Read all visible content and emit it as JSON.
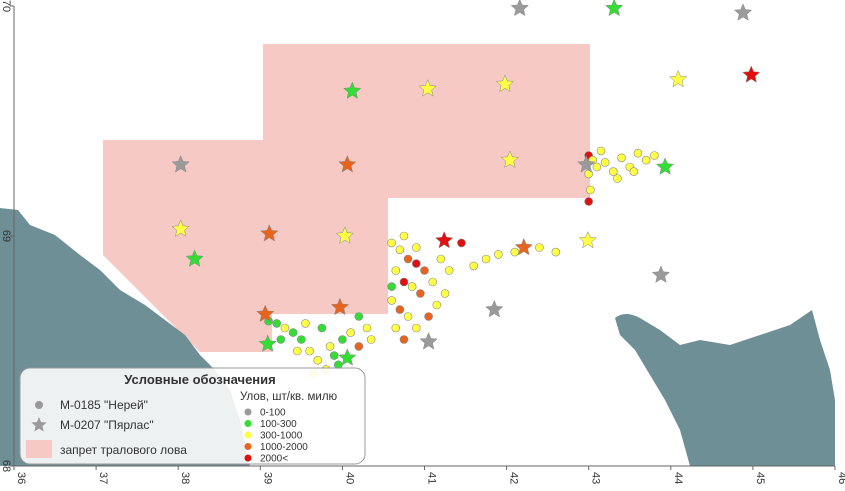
{
  "map": {
    "xlim": [
      36,
      46
    ],
    "ylim": [
      68,
      70
    ],
    "xticks": [
      36,
      37,
      38,
      39,
      40,
      41,
      42,
      43,
      44,
      45,
      46
    ],
    "yticks": [
      68,
      69,
      70
    ]
  },
  "legend": {
    "title": "Условные обозначения",
    "vessels": [
      "М-0185 \"Нерей\"",
      "М-0207 \"Пярлас\""
    ],
    "zone": "запрет тралового лова",
    "catch_title": "Улов, шт/кв. милю",
    "classes": [
      {
        "label": "0-100",
        "color": "#9a9a9a"
      },
      {
        "label": "100-300",
        "color": "#33dd33"
      },
      {
        "label": "300-1000",
        "color": "#ffff44"
      },
      {
        "label": "1000-2000",
        "color": "#e8641e"
      },
      {
        "label": "2000<",
        "color": "#e01010"
      }
    ]
  },
  "stars": [
    [
      42.16,
      69.99,
      0
    ],
    [
      44.88,
      69.97,
      0
    ],
    [
      38.03,
      69.31,
      0
    ],
    [
      42.97,
      69.31,
      0
    ],
    [
      43.88,
      68.83,
      0
    ],
    [
      41.85,
      68.68,
      0
    ],
    [
      41.05,
      68.54,
      0
    ],
    [
      43.31,
      69.99,
      1
    ],
    [
      40.12,
      69.63,
      1
    ],
    [
      43.93,
      69.3,
      1
    ],
    [
      38.2,
      68.9,
      1
    ],
    [
      39.09,
      68.53,
      1
    ],
    [
      40.06,
      68.47,
      1
    ],
    [
      41.04,
      69.64,
      2
    ],
    [
      41.98,
      69.66,
      2
    ],
    [
      44.09,
      69.68,
      2
    ],
    [
      42.04,
      69.33,
      2
    ],
    [
      38.03,
      69.03,
      2
    ],
    [
      40.03,
      69.0,
      2
    ],
    [
      42.99,
      68.98,
      2
    ],
    [
      40.06,
      69.31,
      3
    ],
    [
      39.11,
      69.01,
      3
    ],
    [
      42.21,
      68.95,
      3
    ],
    [
      39.97,
      68.69,
      3
    ],
    [
      39.06,
      68.66,
      3
    ],
    [
      44.98,
      69.7,
      4
    ],
    [
      41.24,
      68.98,
      4
    ]
  ],
  "dots": [
    [
      39.1,
      68.63,
      1
    ],
    [
      39.2,
      68.62,
      1
    ],
    [
      39.3,
      68.6,
      2
    ],
    [
      39.4,
      68.58,
      1
    ],
    [
      39.5,
      68.55,
      1
    ],
    [
      39.6,
      68.5,
      2
    ],
    [
      39.7,
      68.46,
      2
    ],
    [
      39.8,
      68.42,
      2
    ],
    [
      39.9,
      68.48,
      1
    ],
    [
      40.0,
      68.55,
      1
    ],
    [
      39.25,
      68.55,
      1
    ],
    [
      39.55,
      68.62,
      2
    ],
    [
      39.75,
      68.6,
      1
    ],
    [
      39.85,
      68.52,
      2
    ],
    [
      40.1,
      68.58,
      2
    ],
    [
      40.2,
      68.52,
      3
    ],
    [
      40.3,
      68.6,
      2
    ],
    [
      39.45,
      68.5,
      2
    ],
    [
      39.65,
      68.4,
      2
    ],
    [
      39.95,
      68.44,
      1
    ],
    [
      40.2,
      68.65,
      1
    ],
    [
      40.35,
      68.55,
      2
    ],
    [
      40.6,
      68.97,
      2
    ],
    [
      40.7,
      68.94,
      2
    ],
    [
      40.8,
      68.9,
      3
    ],
    [
      40.9,
      68.88,
      4
    ],
    [
      41.0,
      68.85,
      3
    ],
    [
      40.65,
      68.85,
      2
    ],
    [
      40.75,
      68.8,
      4
    ],
    [
      40.85,
      68.78,
      2
    ],
    [
      40.95,
      68.75,
      3
    ],
    [
      41.1,
      68.8,
      2
    ],
    [
      41.2,
      68.9,
      2
    ],
    [
      41.3,
      68.85,
      2
    ],
    [
      40.6,
      68.72,
      2
    ],
    [
      40.7,
      68.68,
      3
    ],
    [
      40.8,
      68.65,
      2
    ],
    [
      40.9,
      68.6,
      2
    ],
    [
      41.05,
      68.65,
      3
    ],
    [
      41.15,
      68.7,
      2
    ],
    [
      40.65,
      68.6,
      2
    ],
    [
      40.75,
      68.55,
      3
    ],
    [
      40.6,
      68.78,
      1
    ],
    [
      41.25,
      68.75,
      2
    ],
    [
      40.9,
      68.95,
      2
    ],
    [
      40.75,
      69.0,
      2
    ],
    [
      41.45,
      68.97,
      4
    ],
    [
      41.6,
      68.87,
      2
    ],
    [
      41.75,
      68.9,
      2
    ],
    [
      41.9,
      68.92,
      2
    ],
    [
      42.1,
      68.93,
      2
    ],
    [
      42.4,
      68.95,
      2
    ],
    [
      42.6,
      68.93,
      2
    ],
    [
      43.0,
      69.35,
      4
    ],
    [
      43.05,
      69.33,
      2
    ],
    [
      43.1,
      69.3,
      2
    ],
    [
      43.2,
      69.32,
      2
    ],
    [
      43.3,
      69.28,
      2
    ],
    [
      43.4,
      69.34,
      2
    ],
    [
      43.5,
      69.3,
      2
    ],
    [
      43.6,
      69.36,
      2
    ],
    [
      43.7,
      69.33,
      2
    ],
    [
      43.8,
      69.35,
      2
    ],
    [
      43.15,
      69.37,
      2
    ],
    [
      43.35,
      69.25,
      2
    ],
    [
      43.0,
      69.27,
      2
    ],
    [
      43.02,
      69.2,
      2
    ],
    [
      43.0,
      69.15,
      4
    ],
    [
      43.55,
      69.28,
      2
    ]
  ]
}
